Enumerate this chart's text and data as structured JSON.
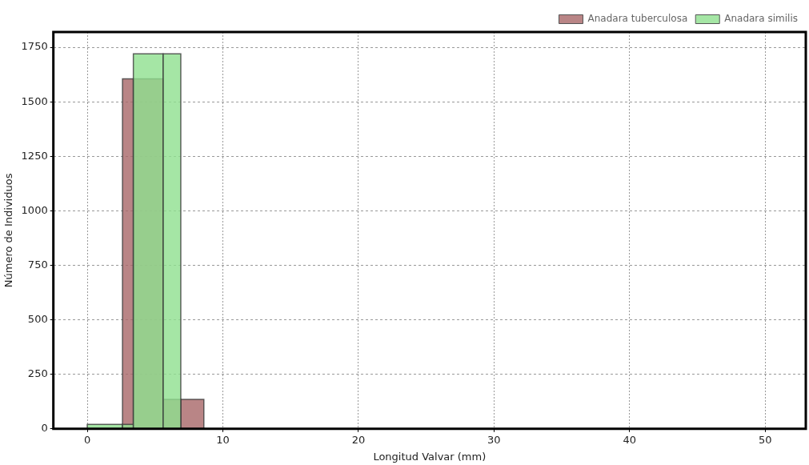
{
  "chart_data": {
    "type": "histogram",
    "xlabel": "Longitud Valvar (mm)",
    "ylabel": "Número de Individuos",
    "series": [
      {
        "name": "Anadara tuberculosa",
        "color": "#a86668",
        "values": [
          null,
          1605,
          1605,
          135,
          135
        ]
      },
      {
        "name": "Anadara similis",
        "color": "#8fe08f",
        "values": [
          20,
          20,
          1720,
          1720,
          null
        ]
      }
    ],
    "bins": [
      0,
      2.6,
      3.4,
      5.6,
      6.9,
      8.6
    ],
    "xlim": [
      -2.5,
      53
    ],
    "xticks": [
      0,
      10,
      20,
      30,
      40,
      50
    ],
    "ylim": [
      0,
      1820
    ],
    "yticks": [
      0,
      250,
      500,
      750,
      1000,
      1250,
      1500,
      1750
    ],
    "grid": true,
    "legend": "top right"
  }
}
